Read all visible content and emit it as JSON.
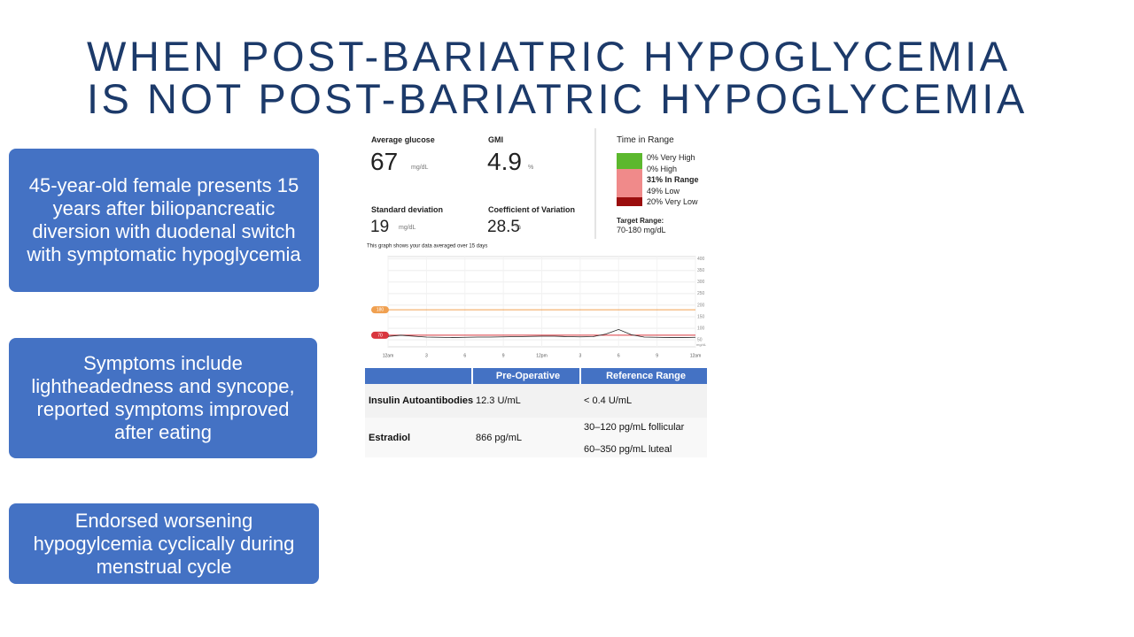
{
  "title": [
    "WHEN POST-BARIATRIC HYPOGLYCEMIA",
    "IS NOT POST-BARIATRIC HYPOGLYCEMIA"
  ],
  "boxes": [
    "45-year-old female presents 15 years after biliopancreatic diversion with duodenal switch with symptomatic hypoglycemia",
    "Symptoms include lightheadedness and syncope, reported symptoms improved after eating",
    "Endorsed worsening hypogylcemia cyclically during menstrual cycle"
  ],
  "stats": [
    {
      "label": "Average glucose",
      "value": "67",
      "unit": "mg/dL"
    },
    {
      "label": "GMI",
      "value": "4.9",
      "unit": "%"
    },
    {
      "label": "Standard deviation",
      "value": "19",
      "unit": "mg/dL"
    },
    {
      "label": "Coefficient of Variation",
      "value": "28.5",
      "unit": "%"
    }
  ],
  "time_in_range": {
    "title": "Time in Range",
    "bands": [
      {
        "label": "0% Very High",
        "color": "#5cb82e"
      },
      {
        "label": "0% High",
        "color": "#f08a8a"
      },
      {
        "label": "31% In Range",
        "color": "#f08a8a"
      },
      {
        "label": "49% Low",
        "color": "#f08a8a"
      },
      {
        "label": "20% Very Low",
        "color": "#9b0d0d"
      }
    ],
    "target_label": "Target Range:",
    "target": "70-180 mg/dL"
  },
  "chart_data": {
    "type": "line",
    "caption": "This graph shows your data averaged over 15 days",
    "x": [
      0,
      1,
      2,
      3,
      4,
      5,
      6,
      7,
      8,
      9,
      10,
      11,
      12,
      13,
      14,
      15,
      16,
      17,
      18,
      19,
      20,
      21,
      22,
      23,
      24
    ],
    "series": [
      {
        "color": "#222222",
        "values": [
          65,
          70,
          66,
          62,
          61,
          60,
          61,
          62,
          62,
          63,
          64,
          65,
          66,
          66,
          64,
          63,
          64,
          75,
          95,
          72,
          62,
          61,
          60,
          60,
          61
        ]
      }
    ],
    "xlim": [
      0,
      24
    ],
    "xticks": [
      {
        "value": 0,
        "label": "12am"
      },
      3,
      6,
      9,
      {
        "value": 12,
        "label": "12pm"
      },
      {
        "value": 15,
        "label": "3"
      },
      {
        "value": 18,
        "label": "6"
      },
      {
        "value": 21,
        "label": "9"
      },
      {
        "value": 24,
        "label": "12am"
      }
    ],
    "ylim": [
      20,
      410
    ],
    "yticks": [
      50,
      100,
      150,
      200,
      250,
      300,
      350,
      400
    ],
    "y_unit": "mg/dL",
    "target_lines": [
      {
        "value": 180,
        "color": "#f0a050"
      },
      {
        "value": 70,
        "color": "#d9363e"
      }
    ],
    "grid": true
  },
  "table": {
    "header": [
      "Pre-Operative",
      "Reference Range"
    ],
    "rows": [
      {
        "name": "Insulin Autoantibodies",
        "value": "12.3 U/mL",
        "reference": [
          "< 0.4 U/mL"
        ]
      },
      {
        "name": "Estradiol",
        "value": "866 pg/mL",
        "reference": [
          "30–120 pg/mL follicular",
          "60–350 pg/mL luteal"
        ]
      }
    ]
  }
}
